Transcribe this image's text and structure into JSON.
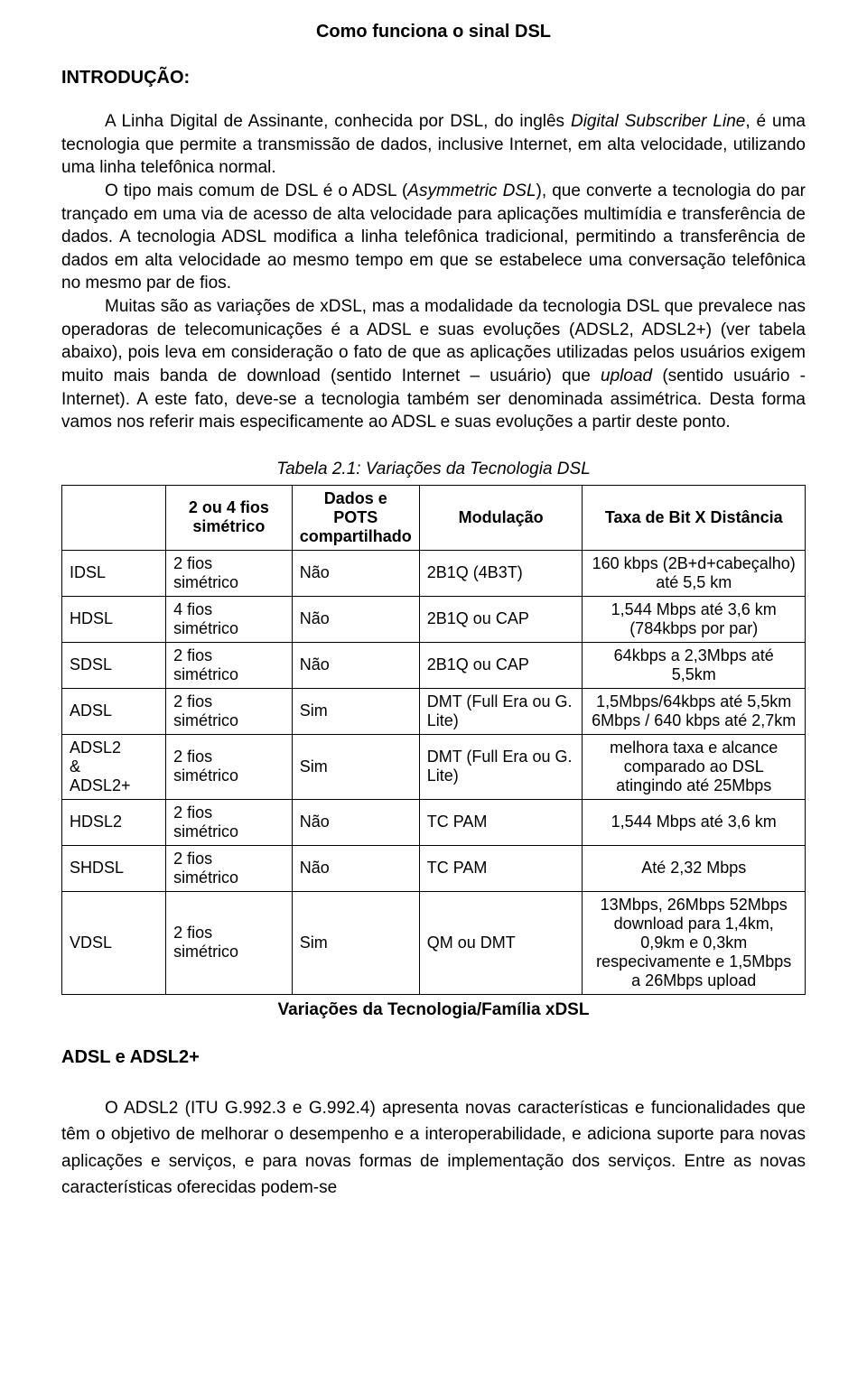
{
  "title": "Como funciona o sinal DSL",
  "intro_heading": "INTRODUÇÃO:",
  "paragraphs": {
    "p1_a": "A Linha Digital de Assinante, conhecida por DSL, do inglês ",
    "p1_b": "Digital Subscriber Line",
    "p1_c": ", é uma tecnologia que permite a transmissão de dados, inclusive Internet, em alta velocidade, utilizando uma linha telefônica normal.",
    "p2_a": "O tipo mais comum de DSL é o ADSL (",
    "p2_b": "Asymmetric DSL",
    "p2_c": "), que converte a tecnologia do par trançado em uma via de acesso de alta velocidade para aplicações multimídia e transferência de dados. A tecnologia ADSL modifica a linha telefônica tradicional, permitindo a transferência de dados em alta velocidade ao mesmo tempo em que se estabelece uma conversação telefônica no mesmo par de fios.",
    "p3_a": "Muitas são as variações de xDSL, mas a modalidade da tecnologia DSL que prevalece nas operadoras de telecomunicações é a ADSL e suas evoluções (ADSL2, ADSL2+) (ver tabela abaixo), pois leva em consideração o fato de que as aplicações utilizadas pelos usuários exigem muito mais banda de download (sentido Internet – usuário) que ",
    "p3_b": "upload",
    "p3_c": " (sentido usuário - Internet). A este fato, deve-se a tecnologia também ser denominada assimétrica. Desta forma vamos nos referir mais especificamente ao ADSL e suas evoluções a partir deste ponto."
  },
  "table": {
    "caption": "Tabela 2.1: Variações da Tecnologia DSL",
    "columns": [
      "",
      "2 ou 4 fios simétrico",
      "Dados e POTS compartilhado",
      "Modulação",
      "Taxa de Bit X Distância"
    ],
    "col_widths": [
      "14%",
      "17%",
      "17%",
      "22%",
      "30%"
    ],
    "rows": [
      {
        "name": "IDSL",
        "c1": "2 fios\nsimétrico",
        "c2": "Não",
        "c3": "2B1Q (4B3T)",
        "c4": "160 kbps (2B+d+cabeçalho)\naté 5,5 km"
      },
      {
        "name": "HDSL",
        "c1": "4 fios\nsimétrico",
        "c2": "Não",
        "c3": "2B1Q ou CAP",
        "c4": "1,544 Mbps até 3,6 km\n(784kbps por par)"
      },
      {
        "name": "SDSL",
        "c1": "2 fios\nsimétrico",
        "c2": "Não",
        "c3": "2B1Q ou CAP",
        "c4": "64kbps a 2,3Mbps até\n5,5km"
      },
      {
        "name": "ADSL",
        "c1": "2 fios\nsimétrico",
        "c2": "Sim",
        "c3": "DMT (Full Era ou G.\nLite)",
        "c4": "1,5Mbps/64kbps até 5,5km\n6Mbps / 640 kbps até 2,7km"
      },
      {
        "name": "ADSL2\n&\nADSL2+",
        "c1": "2 fios\nsimétrico",
        "c2": "Sim",
        "c3": "DMT (Full Era ou G.\nLite)",
        "c4": "melhora taxa e alcance\ncomparado ao DSL\natingindo até 25Mbps"
      },
      {
        "name": "HDSL2",
        "c1": "2 fios\nsimétrico",
        "c2": "Não",
        "c3": "TC PAM",
        "c4": "1,544 Mbps até 3,6 km"
      },
      {
        "name": "SHDSL",
        "c1": "2 fios\nsimétrico",
        "c2": "Não",
        "c3": "TC PAM",
        "c4": "Até 2,32 Mbps"
      },
      {
        "name": "VDSL",
        "c1": "2 fios\nsimétrico",
        "c2": "Sim",
        "c3": "QM ou DMT",
        "c4": "13Mbps, 26Mbps 52Mbps\ndownload para 1,4km,\n0,9km e 0,3km\nrespecivamente e 1,5Mbps\na 26Mbps upload"
      }
    ]
  },
  "table_below_caption": "Variações da Tecnologia/Família xDSL",
  "section2_heading": "ADSL e ADSL2+",
  "tail_paragraph": "O ADSL2 (ITU G.992.3 e G.992.4) apresenta novas características e funcionalidades que têm o objetivo de melhorar o desempenho e a interoperabilidade, e adiciona suporte para novas aplicações e serviços, e para novas formas de implementação dos serviços. Entre as novas características oferecidas podem-se"
}
